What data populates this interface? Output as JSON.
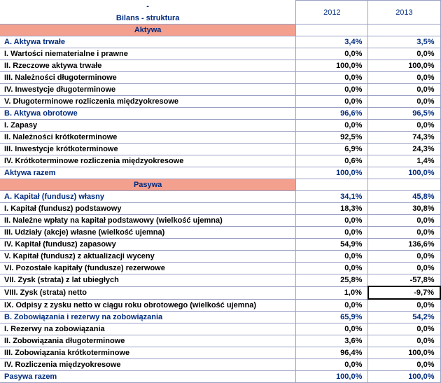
{
  "palette": {
    "brand_blue": "#002b7f",
    "band": "#f4a08e",
    "grid": "#9aa0c5",
    "text": "#000000",
    "background": "#ffffff"
  },
  "header": {
    "dash": "-",
    "title": "Bilans - struktura",
    "years": [
      "2012",
      "2013"
    ]
  },
  "sections": [
    {
      "band": "Aktywa",
      "rows": [
        {
          "label": "A. Aktywa trwałe",
          "style": "blue",
          "v1": "3,4%",
          "v2": "3,5%"
        },
        {
          "label": "I. Wartości niematerialne i prawne",
          "v1": "0,0%",
          "v2": "0,0%"
        },
        {
          "label": "II. Rzeczowe aktywa trwałe",
          "v1": "100,0%",
          "v2": "100,0%"
        },
        {
          "label": "III. Należności długoterminowe",
          "v1": "0,0%",
          "v2": "0,0%"
        },
        {
          "label": "IV. Inwestycje długoterminowe",
          "v1": "0,0%",
          "v2": "0,0%"
        },
        {
          "label": "V. Długoterminowe rozliczenia międzyokresowe",
          "v1": "0,0%",
          "v2": "0,0%"
        },
        {
          "label": "B. Aktywa obrotowe",
          "style": "blue",
          "v1": "96,6%",
          "v2": "96,5%"
        },
        {
          "label": "I. Zapasy",
          "v1": "0,0%",
          "v2": "0,0%"
        },
        {
          "label": "II. Należności krótkoterminowe",
          "v1": "92,5%",
          "v2": "74,3%"
        },
        {
          "label": "III. Inwestycje krótkoterminowe",
          "v1": "6,9%",
          "v2": "24,3%"
        },
        {
          "label": "IV. Krótkoterminowe rozliczenia międzyokresowe",
          "v1": "0,6%",
          "v2": "1,4%"
        },
        {
          "label": "Aktywa razem",
          "style": "blue",
          "v1": "100,0%",
          "v2": "100,0%"
        }
      ]
    },
    {
      "band": "Pasywa",
      "rows": [
        {
          "label": "A. Kapitał (fundusz) własny",
          "style": "blue",
          "v1": "34,1%",
          "v2": "45,8%"
        },
        {
          "label": "I. Kapitał (fundusz) podstawowy",
          "v1": "18,3%",
          "v2": "30,8%"
        },
        {
          "label": "II. Należne wpłaty na kapitał podstawowy (wielkość ujemna)",
          "v1": "0,0%",
          "v2": "0,0%"
        },
        {
          "label": "III. Udziały (akcje) własne (wielkość ujemna)",
          "v1": "0,0%",
          "v2": "0,0%"
        },
        {
          "label": "IV. Kapitał (fundusz) zapasowy",
          "v1": "54,9%",
          "v2": "136,6%"
        },
        {
          "label": "V. Kapitał (fundusz) z aktualizacji wyceny",
          "v1": "0,0%",
          "v2": "0,0%"
        },
        {
          "label": "VI. Pozostałe kapitały (fundusze) rezerwowe",
          "v1": "0,0%",
          "v2": "0,0%"
        },
        {
          "label": "VII. Zysk (strata) z lat ubiegłych",
          "v1": "25,8%",
          "v2": "-57,8%"
        },
        {
          "label": "VIII. Zysk (strata) netto",
          "v1": "1,0%",
          "v2": "-9,7%",
          "v2box": true
        },
        {
          "label": "IX. Odpisy z zysku netto w ciągu roku obrotowego (wielkość ujemna)",
          "v1": "0,0%",
          "v2": "0,0%"
        },
        {
          "label": "B. Zobowiązania i rezerwy na zobowiązania",
          "style": "blue",
          "v1": "65,9%",
          "v2": "54,2%"
        },
        {
          "label": "I. Rezerwy na zobowiązania",
          "v1": "0,0%",
          "v2": "0,0%"
        },
        {
          "label": "II. Zobowiązania długoterminowe",
          "v1": "3,6%",
          "v2": "0,0%"
        },
        {
          "label": "III. Zobowiązania krótkoterminowe",
          "v1": "96,4%",
          "v2": "100,0%"
        },
        {
          "label": "IV. Rozliczenia międzyokresowe",
          "v1": "0,0%",
          "v2": "0,0%"
        },
        {
          "label": "Pasywa razem",
          "style": "blue",
          "v1": "100,0%",
          "v2": "100,0%"
        }
      ]
    }
  ]
}
